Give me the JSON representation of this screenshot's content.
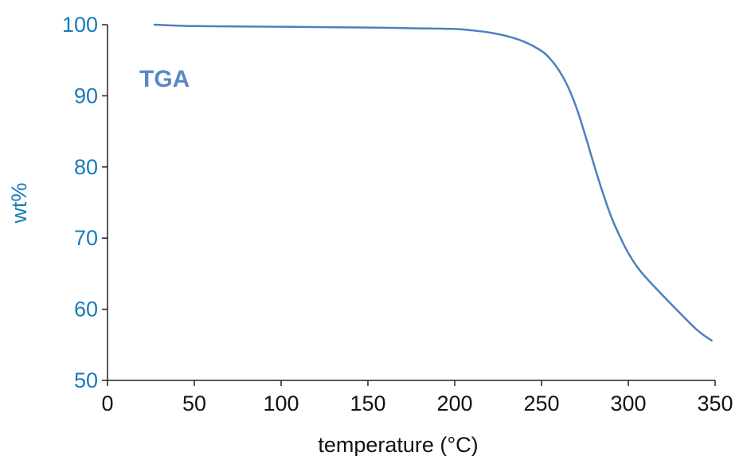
{
  "chart_data": {
    "type": "line",
    "title": "",
    "xlabel": "temperature (°C)",
    "ylabel": "wt%",
    "xlim": [
      0,
      350
    ],
    "ylim": [
      50,
      100
    ],
    "x_ticks": [
      0,
      50,
      100,
      150,
      200,
      250,
      300,
      350
    ],
    "y_ticks": [
      50,
      60,
      70,
      80,
      90,
      100
    ],
    "grid": false,
    "annotation": "TGA",
    "colors": {
      "series": "#4f7fc0",
      "y_axis_text": "#1a7ab8",
      "annotation": "#5b87c4"
    },
    "series": [
      {
        "x": [
          27,
          50,
          100,
          150,
          175,
          200,
          210,
          220,
          230,
          240,
          250,
          255,
          260,
          265,
          270,
          275,
          280,
          285,
          290,
          295,
          300,
          305,
          310,
          320,
          330,
          340,
          348
        ],
        "y": [
          100,
          99.8,
          99.7,
          99.6,
          99.5,
          99.4,
          99.2,
          98.9,
          98.4,
          97.6,
          96.3,
          95.2,
          93.6,
          91.4,
          88.4,
          84.6,
          80.5,
          76.6,
          73.1,
          70.3,
          67.9,
          66.0,
          64.5,
          61.9,
          59.4,
          57.0,
          55.6
        ]
      }
    ]
  }
}
